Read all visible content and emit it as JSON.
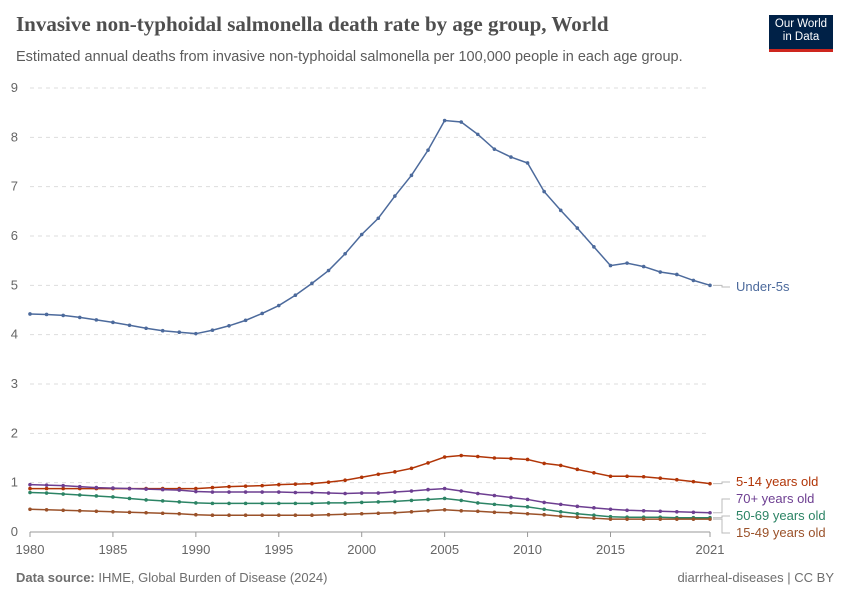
{
  "header": {
    "title": "Invasive non-typhoidal salmonella death rate by age group, World",
    "subtitle": "Estimated annual deaths from invasive non-typhoidal salmonella per 100,000 people in each age group.",
    "logo": "Our World in Data"
  },
  "footer": {
    "source_label": "Data source:",
    "source": "IHME, Global Burden of Disease (2024)",
    "license": "diarrheal-diseases | CC BY"
  },
  "chart_data": {
    "type": "line",
    "title": "Invasive non-typhoidal salmonella death rate by age group, World",
    "xlabel": "",
    "ylabel": "",
    "xlim": [
      1980,
      2021
    ],
    "ylim": [
      0,
      9
    ],
    "grid": "horizontal dashed",
    "legend": "right, line-end labels",
    "x_ticks": [
      "1980",
      "1985",
      "1990",
      "1995",
      "2000",
      "2005",
      "2010",
      "2015",
      "2021"
    ],
    "y_ticks": [
      "0",
      "1",
      "2",
      "3",
      "4",
      "5",
      "6",
      "7",
      "8",
      "9"
    ],
    "x_start": 1980,
    "series": [
      {
        "name": "Under-5s",
        "color": "#4c6a9c",
        "values": [
          4.42,
          4.41,
          4.39,
          4.35,
          4.3,
          4.25,
          4.19,
          4.13,
          4.08,
          4.05,
          4.02,
          4.09,
          4.18,
          4.29,
          4.43,
          4.59,
          4.8,
          5.04,
          5.3,
          5.64,
          6.03,
          6.36,
          6.81,
          7.23,
          7.74,
          8.34,
          8.31,
          8.06,
          7.76,
          7.6,
          7.48,
          6.9,
          6.52,
          6.16,
          5.78,
          5.4,
          5.45,
          5.38,
          5.27,
          5.22,
          5.1,
          5.0
        ]
      },
      {
        "name": "5-14 years old",
        "color": "#b13507",
        "values": [
          0.88,
          0.88,
          0.88,
          0.88,
          0.88,
          0.88,
          0.88,
          0.88,
          0.88,
          0.88,
          0.88,
          0.9,
          0.92,
          0.93,
          0.94,
          0.96,
          0.97,
          0.98,
          1.01,
          1.05,
          1.11,
          1.17,
          1.22,
          1.29,
          1.4,
          1.52,
          1.55,
          1.53,
          1.5,
          1.49,
          1.47,
          1.39,
          1.35,
          1.27,
          1.2,
          1.13,
          1.13,
          1.12,
          1.09,
          1.06,
          1.02,
          0.98
        ]
      },
      {
        "name": "70+ years old",
        "color": "#6d3e91",
        "values": [
          0.96,
          0.95,
          0.94,
          0.92,
          0.9,
          0.89,
          0.88,
          0.87,
          0.86,
          0.85,
          0.82,
          0.81,
          0.81,
          0.81,
          0.81,
          0.81,
          0.8,
          0.8,
          0.79,
          0.78,
          0.79,
          0.79,
          0.81,
          0.83,
          0.86,
          0.88,
          0.83,
          0.78,
          0.74,
          0.7,
          0.66,
          0.6,
          0.56,
          0.52,
          0.49,
          0.46,
          0.44,
          0.43,
          0.42,
          0.41,
          0.4,
          0.39
        ]
      },
      {
        "name": "50-69 years old",
        "color": "#2c8465",
        "values": [
          0.8,
          0.79,
          0.77,
          0.75,
          0.73,
          0.71,
          0.68,
          0.65,
          0.63,
          0.61,
          0.59,
          0.58,
          0.58,
          0.58,
          0.58,
          0.58,
          0.58,
          0.58,
          0.59,
          0.59,
          0.6,
          0.61,
          0.62,
          0.64,
          0.66,
          0.68,
          0.64,
          0.59,
          0.56,
          0.53,
          0.51,
          0.46,
          0.41,
          0.37,
          0.34,
          0.31,
          0.3,
          0.3,
          0.3,
          0.29,
          0.29,
          0.29
        ]
      },
      {
        "name": "15-49 years old",
        "color": "#9a5129",
        "values": [
          0.46,
          0.45,
          0.44,
          0.43,
          0.42,
          0.41,
          0.4,
          0.39,
          0.38,
          0.37,
          0.35,
          0.34,
          0.34,
          0.34,
          0.34,
          0.34,
          0.34,
          0.34,
          0.35,
          0.36,
          0.37,
          0.38,
          0.39,
          0.41,
          0.43,
          0.45,
          0.43,
          0.42,
          0.4,
          0.39,
          0.37,
          0.35,
          0.32,
          0.3,
          0.28,
          0.26,
          0.26,
          0.26,
          0.26,
          0.26,
          0.26,
          0.26
        ]
      }
    ]
  }
}
